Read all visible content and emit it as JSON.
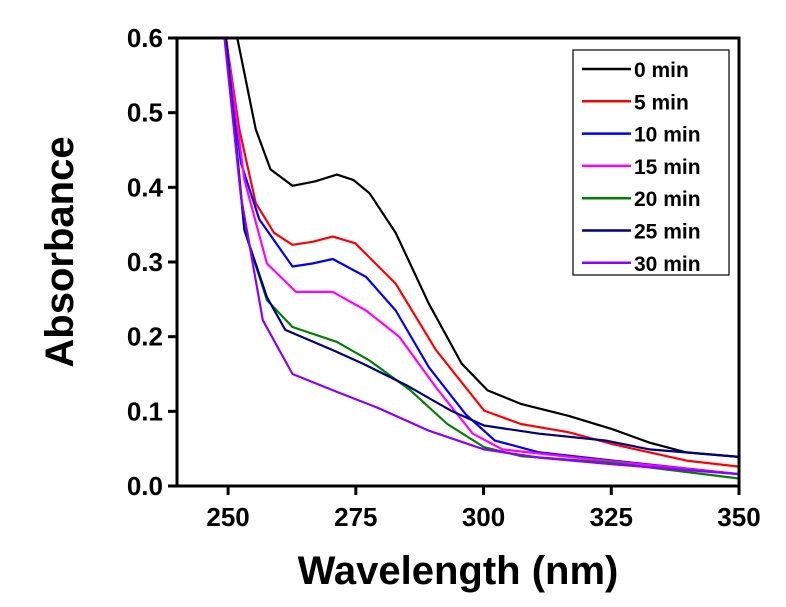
{
  "chart_data": {
    "type": "line",
    "xlabel": "Wavelength (nm)",
    "ylabel": "Absorbance",
    "xlim": [
      240,
      350
    ],
    "ylim": [
      0.0,
      0.6
    ],
    "xticks": [
      "250",
      "275",
      "300",
      "325",
      "350"
    ],
    "yticks": [
      "0.0",
      "0.1",
      "0.2",
      "0.3",
      "0.4",
      "0.5",
      "0.6"
    ],
    "grid": false,
    "legend_position": "top-right",
    "series": [
      {
        "name": "0 min",
        "color": "#000000",
        "points": [
          [
            251.8,
            0.6
          ],
          [
            255.4,
            0.478
          ],
          [
            258.3,
            0.424
          ],
          [
            262.6,
            0.402
          ],
          [
            267,
            0.408
          ],
          [
            271.3,
            0.417
          ],
          [
            274.5,
            0.41
          ],
          [
            277.7,
            0.392
          ],
          [
            282.8,
            0.339
          ],
          [
            289.3,
            0.244
          ],
          [
            295.7,
            0.164
          ],
          [
            300.8,
            0.128
          ],
          [
            307.3,
            0.11
          ],
          [
            316.6,
            0.094
          ],
          [
            325.3,
            0.076
          ],
          [
            332.5,
            0.058
          ],
          [
            339.7,
            0.045
          ],
          [
            350,
            0.039
          ]
        ]
      },
      {
        "name": "5 min",
        "color": "#ff0000",
        "points": [
          [
            249.6,
            0.6
          ],
          [
            252.2,
            0.478
          ],
          [
            255.4,
            0.379
          ],
          [
            259,
            0.339
          ],
          [
            262.6,
            0.323
          ],
          [
            266.5,
            0.327
          ],
          [
            270.5,
            0.334
          ],
          [
            274.9,
            0.325
          ],
          [
            282.8,
            0.271
          ],
          [
            290.7,
            0.182
          ],
          [
            300.1,
            0.101
          ],
          [
            307.3,
            0.083
          ],
          [
            316.6,
            0.072
          ],
          [
            325.3,
            0.056
          ],
          [
            339.7,
            0.034
          ],
          [
            350,
            0.026
          ]
        ]
      },
      {
        "name": "10 min",
        "color": "#0000ff",
        "points": [
          [
            249.6,
            0.6
          ],
          [
            252.5,
            0.433
          ],
          [
            256.1,
            0.357
          ],
          [
            262.6,
            0.294
          ],
          [
            266.5,
            0.298
          ],
          [
            270.5,
            0.304
          ],
          [
            277,
            0.28
          ],
          [
            282.8,
            0.235
          ],
          [
            289.3,
            0.159
          ],
          [
            296.5,
            0.096
          ],
          [
            302.2,
            0.061
          ],
          [
            310.9,
            0.045
          ],
          [
            325.3,
            0.034
          ],
          [
            350,
            0.016
          ]
        ]
      },
      {
        "name": "15 min",
        "color": "#ff00ff",
        "points": [
          [
            249.6,
            0.6
          ],
          [
            253.2,
            0.41
          ],
          [
            257.6,
            0.298
          ],
          [
            263.3,
            0.26
          ],
          [
            270.5,
            0.26
          ],
          [
            277,
            0.235
          ],
          [
            283.5,
            0.2
          ],
          [
            290.7,
            0.132
          ],
          [
            297.9,
            0.07
          ],
          [
            303.7,
            0.049
          ],
          [
            318.1,
            0.038
          ],
          [
            350,
            0.016
          ]
        ]
      },
      {
        "name": "20 min",
        "color": "#008000",
        "points": [
          [
            249.6,
            0.6
          ],
          [
            253.2,
            0.343
          ],
          [
            257.6,
            0.249
          ],
          [
            262.6,
            0.213
          ],
          [
            271.3,
            0.193
          ],
          [
            277.7,
            0.168
          ],
          [
            285.7,
            0.128
          ],
          [
            292.9,
            0.083
          ],
          [
            300.1,
            0.052
          ],
          [
            307.3,
            0.04
          ],
          [
            325.3,
            0.031
          ],
          [
            350,
            0.01
          ]
        ]
      },
      {
        "name": "25 min",
        "color": "#000080",
        "points": [
          [
            249.6,
            0.6
          ],
          [
            253.2,
            0.343
          ],
          [
            257.6,
            0.253
          ],
          [
            261.2,
            0.209
          ],
          [
            270.5,
            0.182
          ],
          [
            276.3,
            0.164
          ],
          [
            284.9,
            0.135
          ],
          [
            293.6,
            0.101
          ],
          [
            300.1,
            0.081
          ],
          [
            310.9,
            0.07
          ],
          [
            323.8,
            0.061
          ],
          [
            332.5,
            0.049
          ],
          [
            350,
            0.039
          ]
        ]
      },
      {
        "name": "30 min",
        "color": "#8b00ff",
        "points": [
          [
            249.3,
            0.6
          ],
          [
            252.5,
            0.388
          ],
          [
            256.8,
            0.222
          ],
          [
            262.6,
            0.15
          ],
          [
            271.3,
            0.126
          ],
          [
            279.2,
            0.105
          ],
          [
            289.3,
            0.074
          ],
          [
            300.1,
            0.049
          ],
          [
            310.9,
            0.038
          ],
          [
            325.3,
            0.029
          ],
          [
            350,
            0.016
          ]
        ]
      }
    ]
  }
}
